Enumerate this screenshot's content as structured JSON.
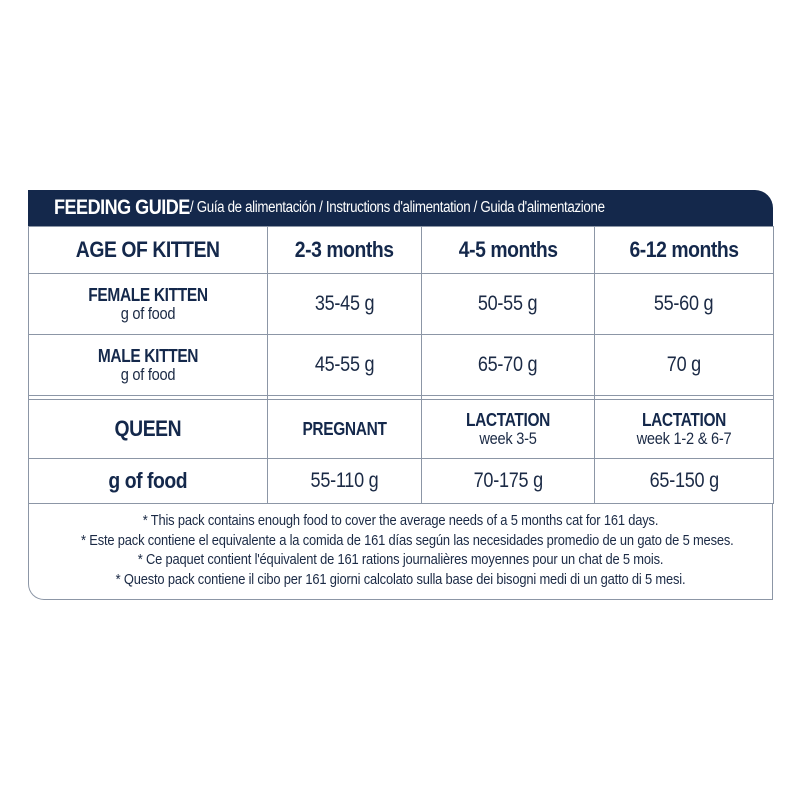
{
  "header": {
    "title": "FEEDING GUIDE",
    "subtitle": " / Guía de alimentación / Instructions d'alimentation / Guida d'alimentazione",
    "band_color": "#14284b"
  },
  "kitten_table": {
    "corner_label": "AGE OF KITTEN",
    "columns": [
      "2-3 months",
      "4-5 months",
      "6-12 months"
    ],
    "rows": [
      {
        "label": "FEMALE KITTEN",
        "sublabel": "g of food",
        "values": [
          "35-45 g",
          "50-55 g",
          "55-60 g"
        ]
      },
      {
        "label": "MALE KITTEN",
        "sublabel": "g of food",
        "values": [
          "45-55 g",
          "65-70 g",
          "70 g"
        ]
      }
    ]
  },
  "queen_table": {
    "corner_label": "QUEEN",
    "columns": [
      {
        "label": "PREGNANT",
        "sublabel": ""
      },
      {
        "label": "LACTATION",
        "sublabel": "week 3-5"
      },
      {
        "label": "LACTATION",
        "sublabel": "week 1-2 & 6-7"
      }
    ],
    "row": {
      "label": "g of food",
      "values": [
        "55-110 g",
        "70-175 g",
        "65-150 g"
      ]
    }
  },
  "footnotes": [
    "* This pack contains enough food to cover the average needs of a 5 months cat for 161 days.",
    "* Este pack contiene el equivalente a la comida de 161 días según las necesidades promedio de un gato de 5 meses.",
    "* Ce paquet contient l'équivalent de 161 rations journalières moyennes pour un chat de 5 mois.",
    "* Questo pack contiene il cibo per 161 giorni calcolato sulla base dei bisogni medi di un gatto di 5 mesi."
  ]
}
